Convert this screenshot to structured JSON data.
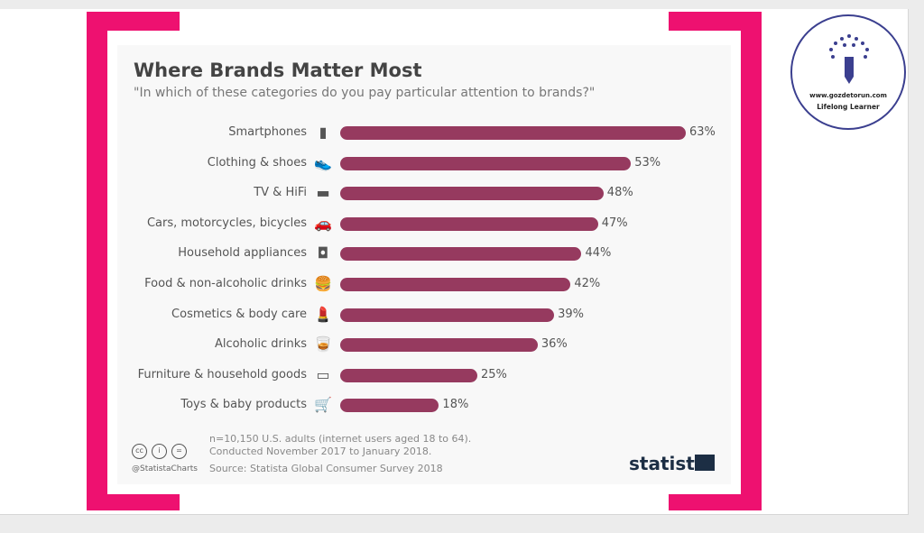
{
  "chart_data": {
    "type": "bar",
    "orientation": "horizontal",
    "title": "Where Brands Matter Most",
    "subtitle": "\"In which of these categories do you pay particular attention to brands?\"",
    "categories": [
      "Smartphones",
      "Clothing & shoes",
      "TV & HiFi",
      "Cars, motorcycles, bicycles",
      "Household appliances",
      "Food & non-alcoholic drinks",
      "Cosmetics & body care",
      "Alcoholic drinks",
      "Furniture & household goods",
      "Toys & baby products"
    ],
    "values": [
      63,
      53,
      48,
      47,
      44,
      42,
      39,
      36,
      25,
      18
    ],
    "value_labels": [
      "63%",
      "53%",
      "48%",
      "47%",
      "44%",
      "42%",
      "39%",
      "36%",
      "25%",
      "18%"
    ],
    "icons": [
      "smartphone-icon",
      "shoe-icon",
      "tv-icon",
      "car-icon",
      "mixer-icon",
      "burger-icon",
      "cosmetics-icon",
      "whisky-glass-icon",
      "sofa-icon",
      "stroller-icon"
    ],
    "xlim": [
      0,
      63
    ],
    "bar_color": "#963a5f",
    "grid": false
  },
  "footer": {
    "note1": "n=10,150 U.S. adults (internet users aged 18 to 64).",
    "note2": "Conducted November 2017 to January 2018.",
    "source": "Source: Statista Global Consumer Survey 2018",
    "handle": "@StatistaCharts",
    "cc": [
      "cc",
      "i",
      "="
    ],
    "logo": "statista"
  },
  "badge": {
    "url": "www.gozdetorun.com",
    "tagline": "Lifelong Learner"
  },
  "colors": {
    "frame": "#ee1170",
    "badge": "#3b3f8f"
  }
}
